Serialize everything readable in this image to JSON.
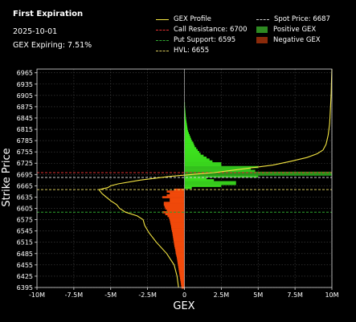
{
  "header": {
    "title": "First Expiration",
    "date": "2025-10-01",
    "gex_expiring": "GEX Expiring: 7.51%"
  },
  "legend": {
    "gex_profile": "GEX Profile",
    "call_resistance": "Call Resistance: 6700",
    "put_support": "Put Support: 6595",
    "hvl": "HVL: 6655",
    "spot_price": "Spot Price: 6687",
    "positive_gex": "Positive GEX",
    "negative_gex": "Negative GEX"
  },
  "colors": {
    "background": "#000000",
    "gex_profile": "#f5e642",
    "call_resistance": "#e03030",
    "put_support": "#2fa52f",
    "hvl": "#d4c65a",
    "spot_price": "#d0d0d0",
    "positive_gex": "#3ee01e",
    "negative_gex": "#e8400a"
  },
  "chart_data": {
    "type": "bar",
    "orientation": "horizontal",
    "xlabel": "GEX",
    "ylabel": "Strike Price",
    "xlim": [
      -10000000,
      10000000
    ],
    "ylim": [
      6395,
      6975
    ],
    "x_ticks": [
      -10000000,
      -7500000,
      -5000000,
      -2500000,
      0,
      2500000,
      5000000,
      7500000,
      10000000
    ],
    "x_tick_labels": [
      "-10M",
      "-7.5M",
      "-5M",
      "-2.5M",
      "0",
      "2.5M",
      "5M",
      "7.5M",
      "10M"
    ],
    "y_ticks": [
      6395,
      6425,
      6455,
      6485,
      6515,
      6545,
      6575,
      6605,
      6635,
      6665,
      6695,
      6725,
      6755,
      6785,
      6815,
      6845,
      6875,
      6905,
      6935,
      6965
    ],
    "grid": true,
    "bars": [
      {
        "strike": 6395,
        "gex": -200000
      },
      {
        "strike": 6400,
        "gex": -220000
      },
      {
        "strike": 6405,
        "gex": -240000
      },
      {
        "strike": 6410,
        "gex": -260000
      },
      {
        "strike": 6415,
        "gex": -280000
      },
      {
        "strike": 6420,
        "gex": -300000
      },
      {
        "strike": 6425,
        "gex": -320000
      },
      {
        "strike": 6430,
        "gex": -340000
      },
      {
        "strike": 6435,
        "gex": -360000
      },
      {
        "strike": 6440,
        "gex": -380000
      },
      {
        "strike": 6445,
        "gex": -400000
      },
      {
        "strike": 6450,
        "gex": -420000
      },
      {
        "strike": 6455,
        "gex": -440000
      },
      {
        "strike": 6460,
        "gex": -460000
      },
      {
        "strike": 6465,
        "gex": -480000
      },
      {
        "strike": 6470,
        "gex": -500000
      },
      {
        "strike": 6475,
        "gex": -520000
      },
      {
        "strike": 6480,
        "gex": -550000
      },
      {
        "strike": 6485,
        "gex": -580000
      },
      {
        "strike": 6490,
        "gex": -600000
      },
      {
        "strike": 6495,
        "gex": -620000
      },
      {
        "strike": 6500,
        "gex": -650000
      },
      {
        "strike": 6505,
        "gex": -680000
      },
      {
        "strike": 6510,
        "gex": -700000
      },
      {
        "strike": 6515,
        "gex": -720000
      },
      {
        "strike": 6520,
        "gex": -740000
      },
      {
        "strike": 6525,
        "gex": -760000
      },
      {
        "strike": 6530,
        "gex": -780000
      },
      {
        "strike": 6535,
        "gex": -800000
      },
      {
        "strike": 6540,
        "gex": -820000
      },
      {
        "strike": 6545,
        "gex": -850000
      },
      {
        "strike": 6550,
        "gex": -880000
      },
      {
        "strike": 6555,
        "gex": -900000
      },
      {
        "strike": 6560,
        "gex": -920000
      },
      {
        "strike": 6565,
        "gex": -950000
      },
      {
        "strike": 6570,
        "gex": -980000
      },
      {
        "strike": 6575,
        "gex": -1000000
      },
      {
        "strike": 6580,
        "gex": -1050000
      },
      {
        "strike": 6585,
        "gex": -1150000
      },
      {
        "strike": 6590,
        "gex": -1300000
      },
      {
        "strike": 6595,
        "gex": -1500000
      },
      {
        "strike": 6600,
        "gex": -1200000
      },
      {
        "strike": 6605,
        "gex": -1300000
      },
      {
        "strike": 6610,
        "gex": -1350000
      },
      {
        "strike": 6615,
        "gex": -1400000
      },
      {
        "strike": 6620,
        "gex": -1400000
      },
      {
        "strike": 6625,
        "gex": -1000000
      },
      {
        "strike": 6630,
        "gex": -1000000
      },
      {
        "strike": 6635,
        "gex": -1500000
      },
      {
        "strike": 6640,
        "gex": -1200000
      },
      {
        "strike": 6645,
        "gex": -1000000
      },
      {
        "strike": 6650,
        "gex": -1200000
      },
      {
        "strike": 6655,
        "gex": -700000
      },
      {
        "strike": 6660,
        "gex": 500000
      },
      {
        "strike": 6665,
        "gex": 2500000
      },
      {
        "strike": 6670,
        "gex": 3500000
      },
      {
        "strike": 6675,
        "gex": 3500000
      },
      {
        "strike": 6680,
        "gex": 2000000
      },
      {
        "strike": 6685,
        "gex": 1500000
      },
      {
        "strike": 6690,
        "gex": 5000000
      },
      {
        "strike": 6695,
        "gex": 10000000
      },
      {
        "strike": 6700,
        "gex": 10000000
      },
      {
        "strike": 6705,
        "gex": 4800000
      },
      {
        "strike": 6710,
        "gex": 4500000
      },
      {
        "strike": 6715,
        "gex": 5000000
      },
      {
        "strike": 6720,
        "gex": 2500000
      },
      {
        "strike": 6725,
        "gex": 2500000
      },
      {
        "strike": 6730,
        "gex": 1900000
      },
      {
        "strike": 6735,
        "gex": 1700000
      },
      {
        "strike": 6740,
        "gex": 1500000
      },
      {
        "strike": 6745,
        "gex": 1300000
      },
      {
        "strike": 6750,
        "gex": 1100000
      },
      {
        "strike": 6755,
        "gex": 1000000
      },
      {
        "strike": 6760,
        "gex": 900000
      },
      {
        "strike": 6765,
        "gex": 800000
      },
      {
        "strike": 6770,
        "gex": 700000
      },
      {
        "strike": 6775,
        "gex": 650000
      },
      {
        "strike": 6780,
        "gex": 600000
      },
      {
        "strike": 6785,
        "gex": 500000
      },
      {
        "strike": 6790,
        "gex": 450000
      },
      {
        "strike": 6795,
        "gex": 400000
      },
      {
        "strike": 6800,
        "gex": 350000
      },
      {
        "strike": 6805,
        "gex": 300000
      },
      {
        "strike": 6810,
        "gex": 250000
      },
      {
        "strike": 6815,
        "gex": 220000
      },
      {
        "strike": 6820,
        "gex": 200000
      },
      {
        "strike": 6825,
        "gex": 180000
      },
      {
        "strike": 6830,
        "gex": 160000
      },
      {
        "strike": 6835,
        "gex": 140000
      },
      {
        "strike": 6840,
        "gex": 120000
      },
      {
        "strike": 6845,
        "gex": 100000
      },
      {
        "strike": 6850,
        "gex": 90000
      },
      {
        "strike": 6855,
        "gex": 80000
      },
      {
        "strike": 6860,
        "gex": 70000
      },
      {
        "strike": 6865,
        "gex": 60000
      },
      {
        "strike": 6870,
        "gex": 50000
      },
      {
        "strike": 6875,
        "gex": 40000
      },
      {
        "strike": 6880,
        "gex": 30000
      },
      {
        "strike": 6885,
        "gex": 20000
      }
    ],
    "profile": [
      {
        "strike": 6395,
        "gex": -400000
      },
      {
        "strike": 6425,
        "gex": -500000
      },
      {
        "strike": 6455,
        "gex": -700000
      },
      {
        "strike": 6485,
        "gex": -1200000
      },
      {
        "strike": 6515,
        "gex": -1900000
      },
      {
        "strike": 6540,
        "gex": -2400000
      },
      {
        "strike": 6560,
        "gex": -2700000
      },
      {
        "strike": 6575,
        "gex": -2800000
      },
      {
        "strike": 6585,
        "gex": -3200000
      },
      {
        "strike": 6595,
        "gex": -4000000
      },
      {
        "strike": 6605,
        "gex": -4400000
      },
      {
        "strike": 6615,
        "gex": -4600000
      },
      {
        "strike": 6625,
        "gex": -5000000
      },
      {
        "strike": 6635,
        "gex": -5300000
      },
      {
        "strike": 6645,
        "gex": -5600000
      },
      {
        "strike": 6655,
        "gex": -5800000
      },
      {
        "strike": 6660,
        "gex": -5200000
      },
      {
        "strike": 6665,
        "gex": -5000000
      },
      {
        "strike": 6670,
        "gex": -4500000
      },
      {
        "strike": 6680,
        "gex": -3000000
      },
      {
        "strike": 6690,
        "gex": -1000000
      },
      {
        "strike": 6700,
        "gex": 2000000
      },
      {
        "strike": 6710,
        "gex": 4000000
      },
      {
        "strike": 6720,
        "gex": 6000000
      },
      {
        "strike": 6730,
        "gex": 7200000
      },
      {
        "strike": 6740,
        "gex": 8300000
      },
      {
        "strike": 6750,
        "gex": 9000000
      },
      {
        "strike": 6760,
        "gex": 9400000
      },
      {
        "strike": 6775,
        "gex": 9600000
      },
      {
        "strike": 6800,
        "gex": 9750000
      },
      {
        "strike": 6830,
        "gex": 9850000
      },
      {
        "strike": 6870,
        "gex": 9900000
      },
      {
        "strike": 6910,
        "gex": 9950000
      },
      {
        "strike": 6950,
        "gex": 9980000
      },
      {
        "strike": 6975,
        "gex": 10000000
      }
    ],
    "levels": [
      {
        "name": "Call Resistance",
        "strike": 6700,
        "color": "#e03030"
      },
      {
        "name": "Spot Price",
        "strike": 6687,
        "color": "#d0d0d0"
      },
      {
        "name": "HVL",
        "strike": 6655,
        "color": "#d4c65a"
      },
      {
        "name": "Put Support",
        "strike": 6595,
        "color": "#2fa52f"
      }
    ]
  }
}
